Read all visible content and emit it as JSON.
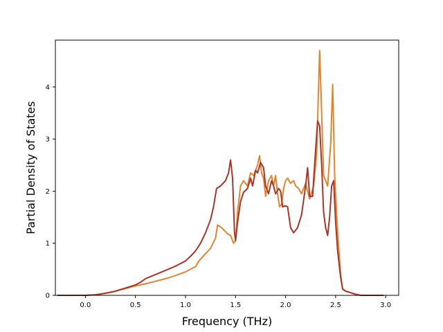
{
  "chart_data": {
    "type": "line",
    "title": "",
    "xlabel": "Frequency (THz)",
    "ylabel": "Partial Density of States",
    "xlim": [
      -0.3,
      3.13
    ],
    "ylim": [
      0,
      4.9
    ],
    "xticks": [
      0.0,
      0.5,
      1.0,
      1.5,
      2.0,
      2.5,
      3.0
    ],
    "xtick_labels": [
      "0.0",
      "0.5",
      "1.0",
      "1.5",
      "2.0",
      "2.5",
      "3.0"
    ],
    "yticks": [
      0,
      1,
      2,
      3,
      4
    ],
    "ytick_labels": [
      "0",
      "1",
      "2",
      "3",
      "4"
    ],
    "grid": false,
    "legend": "none",
    "series": [
      {
        "color": "#e6832a",
        "points": [
          [
            -0.28,
            0.0
          ],
          [
            0.0,
            0.0
          ],
          [
            0.1,
            0.01
          ],
          [
            0.2,
            0.04
          ],
          [
            0.3,
            0.08
          ],
          [
            0.4,
            0.13
          ],
          [
            0.5,
            0.18
          ],
          [
            0.6,
            0.22
          ],
          [
            0.7,
            0.27
          ],
          [
            0.8,
            0.32
          ],
          [
            0.9,
            0.38
          ],
          [
            1.0,
            0.45
          ],
          [
            1.05,
            0.5
          ],
          [
            1.1,
            0.55
          ],
          [
            1.13,
            0.65
          ],
          [
            1.2,
            0.8
          ],
          [
            1.25,
            0.9
          ],
          [
            1.3,
            1.1
          ],
          [
            1.32,
            1.35
          ],
          [
            1.36,
            1.3
          ],
          [
            1.42,
            1.18
          ],
          [
            1.45,
            1.15
          ],
          [
            1.48,
            1.0
          ],
          [
            1.5,
            1.05
          ],
          [
            1.52,
            1.6
          ],
          [
            1.55,
            2.1
          ],
          [
            1.58,
            2.2
          ],
          [
            1.62,
            2.1
          ],
          [
            1.65,
            2.35
          ],
          [
            1.68,
            2.3
          ],
          [
            1.72,
            2.5
          ],
          [
            1.74,
            2.68
          ],
          [
            1.76,
            2.35
          ],
          [
            1.78,
            2.25
          ],
          [
            1.8,
            1.9
          ],
          [
            1.83,
            2.2
          ],
          [
            1.86,
            2.3
          ],
          [
            1.88,
            2.1
          ],
          [
            1.9,
            2.3
          ],
          [
            1.92,
            1.95
          ],
          [
            1.94,
            1.7
          ],
          [
            1.96,
            1.75
          ],
          [
            1.98,
            2.05
          ],
          [
            2.0,
            2.2
          ],
          [
            2.02,
            2.25
          ],
          [
            2.05,
            2.15
          ],
          [
            2.08,
            2.2
          ],
          [
            2.1,
            2.1
          ],
          [
            2.13,
            2.05
          ],
          [
            2.16,
            1.95
          ],
          [
            2.2,
            2.15
          ],
          [
            2.24,
            1.85
          ],
          [
            2.28,
            2.1
          ],
          [
            2.31,
            2.7
          ],
          [
            2.34,
            4.7
          ],
          [
            2.36,
            3.5
          ],
          [
            2.38,
            2.3
          ],
          [
            2.42,
            2.1
          ],
          [
            2.45,
            2.9
          ],
          [
            2.47,
            4.05
          ],
          [
            2.49,
            2.3
          ],
          [
            2.52,
            1.2
          ],
          [
            2.55,
            0.4
          ],
          [
            2.57,
            0.12
          ],
          [
            2.6,
            0.08
          ],
          [
            2.65,
            0.05
          ],
          [
            2.7,
            0.02
          ],
          [
            2.75,
            0.0
          ],
          [
            2.98,
            0.0
          ]
        ]
      },
      {
        "color": "#b03225",
        "points": [
          [
            -0.28,
            0.0
          ],
          [
            0.0,
            0.0
          ],
          [
            0.1,
            0.01
          ],
          [
            0.2,
            0.04
          ],
          [
            0.3,
            0.08
          ],
          [
            0.4,
            0.14
          ],
          [
            0.5,
            0.2
          ],
          [
            0.55,
            0.25
          ],
          [
            0.6,
            0.32
          ],
          [
            0.7,
            0.4
          ],
          [
            0.8,
            0.48
          ],
          [
            0.9,
            0.56
          ],
          [
            1.0,
            0.66
          ],
          [
            1.05,
            0.75
          ],
          [
            1.1,
            0.85
          ],
          [
            1.15,
            1.0
          ],
          [
            1.2,
            1.2
          ],
          [
            1.25,
            1.45
          ],
          [
            1.28,
            1.7
          ],
          [
            1.31,
            2.05
          ],
          [
            1.35,
            2.1
          ],
          [
            1.4,
            2.2
          ],
          [
            1.43,
            2.35
          ],
          [
            1.45,
            2.6
          ],
          [
            1.47,
            2.25
          ],
          [
            1.49,
            1.2
          ],
          [
            1.5,
            1.05
          ],
          [
            1.52,
            1.4
          ],
          [
            1.55,
            1.8
          ],
          [
            1.58,
            1.98
          ],
          [
            1.62,
            2.05
          ],
          [
            1.65,
            2.25
          ],
          [
            1.67,
            2.1
          ],
          [
            1.7,
            2.4
          ],
          [
            1.72,
            2.35
          ],
          [
            1.75,
            2.55
          ],
          [
            1.78,
            2.45
          ],
          [
            1.8,
            2.1
          ],
          [
            1.83,
            1.95
          ],
          [
            1.86,
            2.2
          ],
          [
            1.88,
            2.1
          ],
          [
            1.9,
            1.95
          ],
          [
            1.93,
            2.05
          ],
          [
            1.95,
            2.0
          ],
          [
            1.97,
            1.7
          ],
          [
            2.0,
            1.72
          ],
          [
            2.02,
            1.7
          ],
          [
            2.05,
            1.3
          ],
          [
            2.08,
            1.2
          ],
          [
            2.12,
            1.3
          ],
          [
            2.16,
            1.55
          ],
          [
            2.2,
            2.1
          ],
          [
            2.22,
            2.45
          ],
          [
            2.24,
            1.9
          ],
          [
            2.27,
            1.9
          ],
          [
            2.3,
            2.8
          ],
          [
            2.32,
            3.35
          ],
          [
            2.34,
            3.25
          ],
          [
            2.36,
            2.5
          ],
          [
            2.38,
            1.6
          ],
          [
            2.4,
            1.3
          ],
          [
            2.42,
            1.15
          ],
          [
            2.44,
            1.5
          ],
          [
            2.46,
            2.1
          ],
          [
            2.48,
            2.2
          ],
          [
            2.5,
            1.4
          ],
          [
            2.52,
            0.85
          ],
          [
            2.55,
            0.35
          ],
          [
            2.57,
            0.12
          ],
          [
            2.6,
            0.08
          ],
          [
            2.65,
            0.05
          ],
          [
            2.7,
            0.02
          ],
          [
            2.75,
            0.0
          ],
          [
            2.98,
            0.0
          ]
        ]
      }
    ]
  }
}
